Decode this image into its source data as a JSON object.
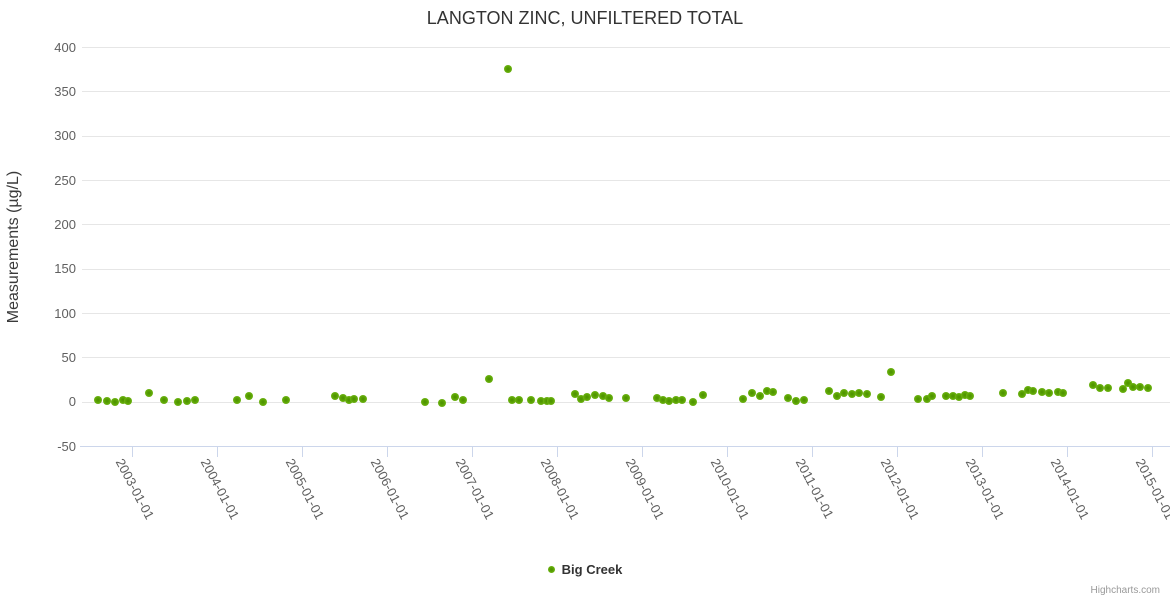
{
  "chart": {
    "title": "LANGTON ZINC, UNFILTERED TOTAL",
    "y_axis_title": "Measurements (µg/L)",
    "legend_label": "Big Creek",
    "credits": "Highcharts.com"
  },
  "colors": {
    "series_green": "#63ab08",
    "gridline": "#e6e6e6",
    "axis_line": "#ccd6eb",
    "tick_label": "#606060",
    "title_text": "#333333",
    "credits_text": "#999999"
  },
  "chart_data": {
    "type": "scatter",
    "title": "LANGTON ZINC, UNFILTERED TOTAL",
    "xlabel": "",
    "ylabel": "Measurements (µg/L)",
    "ylim": [
      -50,
      400
    ],
    "yticks": [
      -50,
      0,
      50,
      100,
      150,
      200,
      250,
      300,
      350,
      400
    ],
    "xticks": [
      "2003-01-01",
      "2004-01-01",
      "2005-01-01",
      "2006-01-01",
      "2007-01-01",
      "2008-01-01",
      "2009-01-01",
      "2010-01-01",
      "2011-01-01",
      "2012-01-01",
      "2013-01-01",
      "2014-01-01",
      "2015-01-01"
    ],
    "grid": "horizontal",
    "legend_position": "bottom-center",
    "series": [
      {
        "name": "Big Creek",
        "color": "#63ab08",
        "points": [
          [
            "2002-08-07",
            2
          ],
          [
            "2002-09-16",
            1
          ],
          [
            "2002-10-19",
            0
          ],
          [
            "2002-11-21",
            1.5
          ],
          [
            "2002-12-13",
            1
          ],
          [
            "2003-03-14",
            10
          ],
          [
            "2003-05-19",
            2
          ],
          [
            "2003-07-16",
            0
          ],
          [
            "2003-08-25",
            1
          ],
          [
            "2003-09-27",
            2
          ],
          [
            "2004-03-28",
            2
          ],
          [
            "2004-05-19",
            7
          ],
          [
            "2004-07-16",
            0
          ],
          [
            "2004-10-23",
            2
          ],
          [
            "2005-05-22",
            7
          ],
          [
            "2005-06-24",
            4
          ],
          [
            "2005-07-23",
            2
          ],
          [
            "2005-08-14",
            3
          ],
          [
            "2005-09-20",
            3
          ],
          [
            "2006-06-13",
            0
          ],
          [
            "2006-08-25",
            -1
          ],
          [
            "2006-10-19",
            5
          ],
          [
            "2006-11-21",
            2
          ],
          [
            "2007-03-14",
            26
          ],
          [
            "2007-06-03",
            375
          ],
          [
            "2007-06-21",
            1.5
          ],
          [
            "2007-07-23",
            1.5
          ],
          [
            "2007-09-09",
            1.5
          ],
          [
            "2007-10-23",
            0.5
          ],
          [
            "2007-11-17",
            0.5
          ],
          [
            "2007-12-06",
            0.5
          ],
          [
            "2008-03-17",
            9
          ],
          [
            "2008-04-12",
            3
          ],
          [
            "2008-05-11",
            5
          ],
          [
            "2008-06-13",
            8
          ],
          [
            "2008-07-16",
            6
          ],
          [
            "2008-08-14",
            4
          ],
          [
            "2008-10-23",
            4.5
          ],
          [
            "2009-03-07",
            4
          ],
          [
            "2009-04-01",
            2
          ],
          [
            "2009-04-27",
            0.5
          ],
          [
            "2009-05-26",
            2
          ],
          [
            "2009-06-21",
            2
          ],
          [
            "2009-08-07",
            0
          ],
          [
            "2009-09-20",
            8
          ],
          [
            "2010-03-11",
            3
          ],
          [
            "2010-04-16",
            10
          ],
          [
            "2010-05-22",
            6.5
          ],
          [
            "2010-06-21",
            12
          ],
          [
            "2010-07-16",
            11
          ],
          [
            "2010-09-20",
            4
          ],
          [
            "2010-10-26",
            1
          ],
          [
            "2010-11-28",
            2
          ],
          [
            "2011-03-14",
            12
          ],
          [
            "2011-04-16",
            6.5
          ],
          [
            "2011-05-19",
            10
          ],
          [
            "2011-06-21",
            8.5
          ],
          [
            "2011-07-20",
            10
          ],
          [
            "2011-08-25",
            8.5
          ],
          [
            "2011-10-23",
            5
          ],
          [
            "2011-12-06",
            33
          ],
          [
            "2012-04-01",
            3
          ],
          [
            "2012-05-11",
            3
          ],
          [
            "2012-06-02",
            6
          ],
          [
            "2012-07-30",
            6.5
          ],
          [
            "2012-08-28",
            6
          ],
          [
            "2012-09-23",
            5
          ],
          [
            "2012-10-19",
            8
          ],
          [
            "2012-11-10",
            6.5
          ],
          [
            "2013-04-01",
            10
          ],
          [
            "2013-06-21",
            8.5
          ],
          [
            "2013-07-16",
            13
          ],
          [
            "2013-08-07",
            12
          ],
          [
            "2013-09-17",
            11
          ],
          [
            "2013-10-16",
            10
          ],
          [
            "2013-11-21",
            11
          ],
          [
            "2013-12-13",
            10
          ],
          [
            "2014-04-23",
            19
          ],
          [
            "2014-05-22",
            15.5
          ],
          [
            "2014-06-24",
            15.5
          ],
          [
            "2014-08-28",
            14
          ],
          [
            "2014-09-20",
            21
          ],
          [
            "2014-10-12",
            16.5
          ],
          [
            "2014-11-10",
            16.5
          ],
          [
            "2014-12-13",
            15.5
          ]
        ]
      }
    ]
  }
}
